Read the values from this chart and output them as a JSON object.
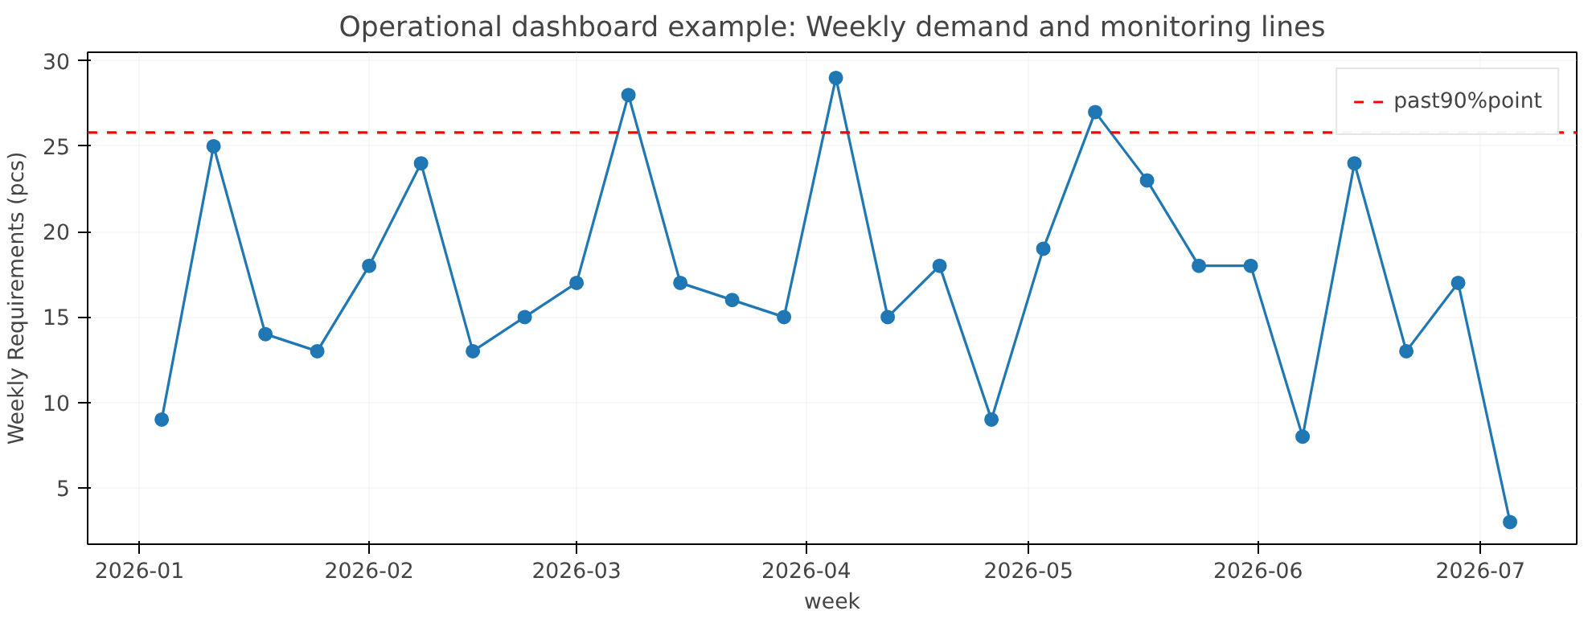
{
  "chart_data": {
    "type": "line",
    "title": "Operational dashboard example: Weekly demand and monitoring lines",
    "xlabel": "week",
    "ylabel": "Weekly Requirements (pcs)",
    "x": [
      "2026-01-04",
      "2026-01-11",
      "2026-01-18",
      "2026-01-25",
      "2026-02-01",
      "2026-02-08",
      "2026-02-15",
      "2026-02-22",
      "2026-03-01",
      "2026-03-08",
      "2026-03-15",
      "2026-03-22",
      "2026-03-29",
      "2026-04-05",
      "2026-04-12",
      "2026-04-19",
      "2026-04-26",
      "2026-05-03",
      "2026-05-10",
      "2026-05-17",
      "2026-05-24",
      "2026-05-31",
      "2026-06-07",
      "2026-06-14",
      "2026-06-21",
      "2026-06-28",
      "2026-07-05"
    ],
    "series": [
      {
        "color": "#1f77b4",
        "values": [
          9,
          25,
          14,
          13,
          18,
          24,
          13,
          15,
          17,
          28,
          17,
          16,
          15,
          29,
          15,
          18,
          9,
          19,
          27,
          23,
          18,
          18,
          8,
          24,
          13,
          17,
          3
        ]
      }
    ],
    "xlim": [
      "2025-12-25",
      "2026-07-14"
    ],
    "xticks": [
      {
        "value": "2026-01-01",
        "label": "2026-01"
      },
      {
        "value": "2026-02-01",
        "label": "2026-02"
      },
      {
        "value": "2026-03-01",
        "label": "2026-03"
      },
      {
        "value": "2026-04-01",
        "label": "2026-04"
      },
      {
        "value": "2026-05-01",
        "label": "2026-05"
      },
      {
        "value": "2026-06-01",
        "label": "2026-06"
      },
      {
        "value": "2026-07-01",
        "label": "2026-07"
      }
    ],
    "ylim": [
      1.7,
      30.5
    ],
    "yticks": [
      5,
      10,
      15,
      20,
      25,
      30
    ],
    "ref_lines": [
      {
        "axis": "y",
        "value": 25.8,
        "label": "past90%point",
        "color": "#ff0000",
        "line_style": "dashed"
      }
    ],
    "grid": true,
    "legend": "top right",
    "marker": "circle",
    "line_style": "solid"
  }
}
